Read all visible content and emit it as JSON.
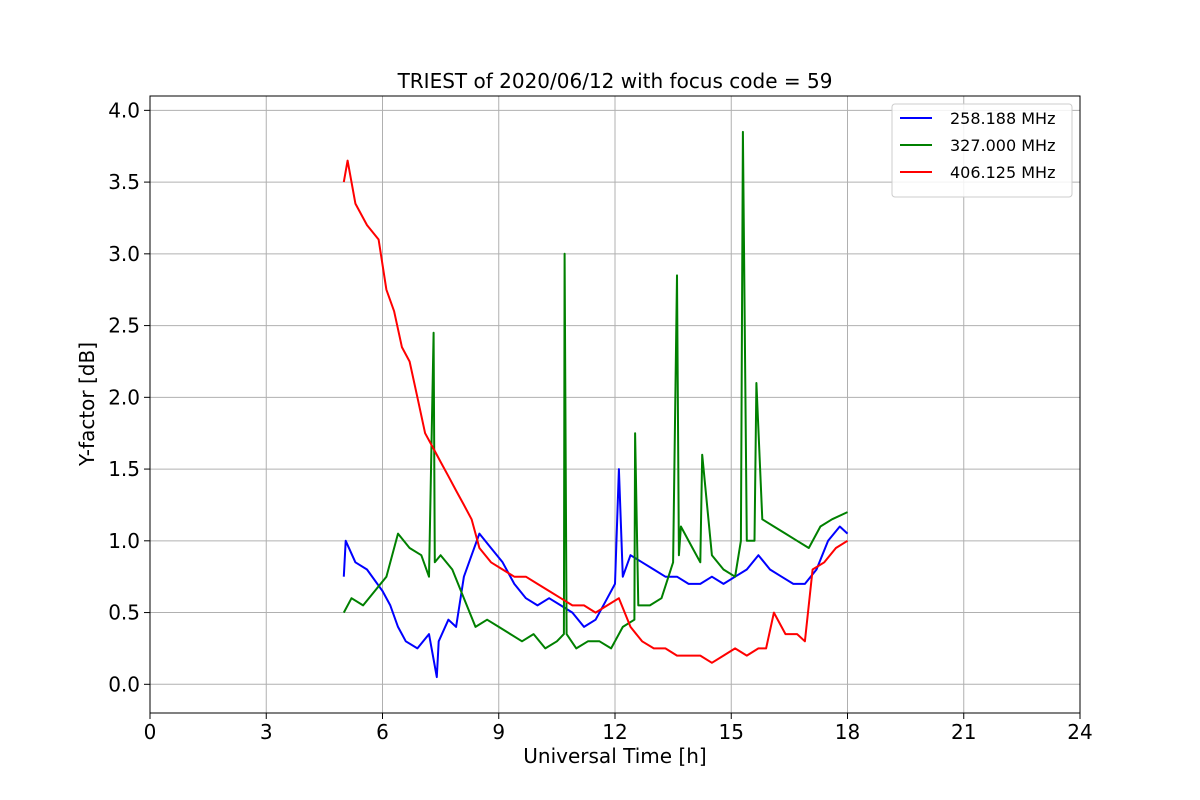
{
  "chart_data": {
    "type": "line",
    "title": "TRIEST of 2020/06/12 with focus code = 59",
    "xlabel": "Universal Time [h]",
    "ylabel": "Y-factor [dB]",
    "xlim": [
      0,
      24
    ],
    "ylim": [
      -0.2,
      4.1
    ],
    "xticks": [
      0,
      3,
      6,
      9,
      12,
      15,
      18,
      21,
      24
    ],
    "yticks": [
      0.0,
      0.5,
      1.0,
      1.5,
      2.0,
      2.5,
      3.0,
      3.5,
      4.0
    ],
    "xtick_labels": [
      "0",
      "3",
      "6",
      "9",
      "12",
      "15",
      "18",
      "21",
      "24"
    ],
    "ytick_labels": [
      "0.0",
      "0.5",
      "1.0",
      "1.5",
      "2.0",
      "2.5",
      "3.0",
      "3.5",
      "4.0"
    ],
    "grid": true,
    "legend_position": "top-right",
    "series": [
      {
        "name": "258.188 MHz",
        "color": "#0000ff",
        "x": [
          5.0,
          5.05,
          5.3,
          5.6,
          6.0,
          6.2,
          6.4,
          6.6,
          6.9,
          7.2,
          7.4,
          7.45,
          7.7,
          7.9,
          8.1,
          8.3,
          8.5,
          8.8,
          9.1,
          9.4,
          9.7,
          10.0,
          10.3,
          10.6,
          10.9,
          11.2,
          11.5,
          11.8,
          12.0,
          12.1,
          12.2,
          12.4,
          12.7,
          13.0,
          13.3,
          13.6,
          13.9,
          14.2,
          14.5,
          14.8,
          15.1,
          15.4,
          15.7,
          16.0,
          16.3,
          16.6,
          16.9,
          17.2,
          17.5,
          17.8,
          18.0
        ],
        "values": [
          0.75,
          1.0,
          0.85,
          0.8,
          0.65,
          0.55,
          0.4,
          0.3,
          0.25,
          0.35,
          0.05,
          0.3,
          0.45,
          0.4,
          0.75,
          0.9,
          1.05,
          0.95,
          0.85,
          0.7,
          0.6,
          0.55,
          0.6,
          0.55,
          0.5,
          0.4,
          0.45,
          0.6,
          0.7,
          1.5,
          0.75,
          0.9,
          0.85,
          0.8,
          0.75,
          0.75,
          0.7,
          0.7,
          0.75,
          0.7,
          0.75,
          0.8,
          0.9,
          0.8,
          0.75,
          0.7,
          0.7,
          0.8,
          1.0,
          1.1,
          1.05
        ]
      },
      {
        "name": "327.000 MHz",
        "color": "#008000",
        "x": [
          5.0,
          5.2,
          5.5,
          5.8,
          6.1,
          6.4,
          6.7,
          7.0,
          7.2,
          7.32,
          7.35,
          7.5,
          7.8,
          8.1,
          8.4,
          8.7,
          9.0,
          9.3,
          9.6,
          9.9,
          10.2,
          10.5,
          10.68,
          10.7,
          10.75,
          11.0,
          11.3,
          11.6,
          11.9,
          12.2,
          12.5,
          12.52,
          12.6,
          12.9,
          13.2,
          13.5,
          13.6,
          13.65,
          13.7,
          14.0,
          14.2,
          14.25,
          14.5,
          14.8,
          15.1,
          15.25,
          15.3,
          15.4,
          15.6,
          15.65,
          15.8,
          16.1,
          16.4,
          16.7,
          17.0,
          17.3,
          17.6,
          18.0
        ],
        "values": [
          0.5,
          0.6,
          0.55,
          0.65,
          0.75,
          1.05,
          0.95,
          0.9,
          0.75,
          2.45,
          0.85,
          0.9,
          0.8,
          0.6,
          0.4,
          0.45,
          0.4,
          0.35,
          0.3,
          0.35,
          0.25,
          0.3,
          0.35,
          3.0,
          0.35,
          0.25,
          0.3,
          0.3,
          0.25,
          0.4,
          0.45,
          1.75,
          0.55,
          0.55,
          0.6,
          0.85,
          2.85,
          0.9,
          1.1,
          0.95,
          0.85,
          1.6,
          0.9,
          0.8,
          0.75,
          1.0,
          3.85,
          1.0,
          1.0,
          2.1,
          1.15,
          1.1,
          1.05,
          1.0,
          0.95,
          1.1,
          1.15,
          1.2
        ]
      },
      {
        "name": "406.125 MHz",
        "color": "#ff0000",
        "x": [
          5.0,
          5.1,
          5.3,
          5.6,
          5.9,
          6.1,
          6.3,
          6.5,
          6.7,
          6.9,
          7.1,
          7.3,
          7.5,
          7.7,
          7.9,
          8.1,
          8.3,
          8.5,
          8.8,
          9.1,
          9.4,
          9.7,
          10.0,
          10.3,
          10.6,
          10.9,
          11.2,
          11.5,
          11.8,
          12.1,
          12.4,
          12.7,
          13.0,
          13.3,
          13.6,
          13.9,
          14.2,
          14.5,
          14.8,
          15.1,
          15.4,
          15.7,
          15.9,
          16.1,
          16.4,
          16.7,
          16.9,
          17.1,
          17.4,
          17.7,
          18.0
        ],
        "values": [
          3.5,
          3.65,
          3.35,
          3.2,
          3.1,
          2.75,
          2.6,
          2.35,
          2.25,
          2.0,
          1.75,
          1.65,
          1.55,
          1.45,
          1.35,
          1.25,
          1.15,
          0.95,
          0.85,
          0.8,
          0.75,
          0.75,
          0.7,
          0.65,
          0.6,
          0.55,
          0.55,
          0.5,
          0.55,
          0.6,
          0.4,
          0.3,
          0.25,
          0.25,
          0.2,
          0.2,
          0.2,
          0.15,
          0.2,
          0.25,
          0.2,
          0.25,
          0.25,
          0.5,
          0.35,
          0.35,
          0.3,
          0.8,
          0.85,
          0.95,
          1.0
        ]
      }
    ]
  }
}
